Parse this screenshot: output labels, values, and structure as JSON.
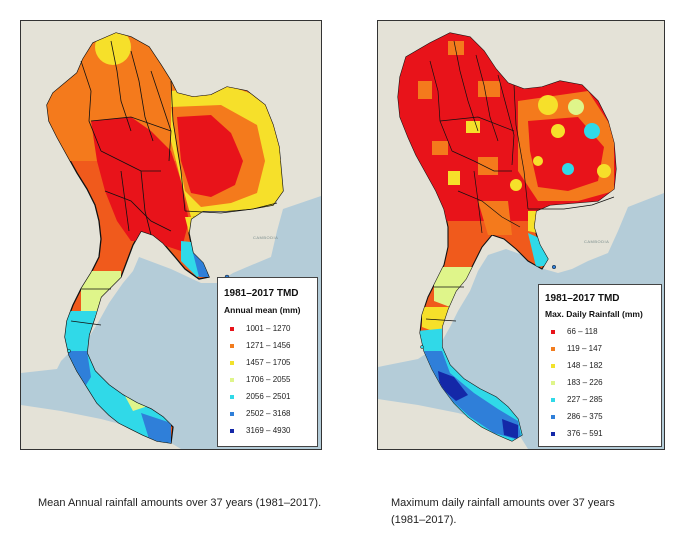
{
  "maps": [
    {
      "id": "annual-mean",
      "legend": {
        "title": "1981–2017 TMD",
        "subtitle": "Annual mean (mm)",
        "classes": [
          {
            "label": "1001 – 1270",
            "color": "#e8131a"
          },
          {
            "label": "1271 – 1456",
            "color": "#f27c1e"
          },
          {
            "label": "1457 – 1705",
            "color": "#f2e22b"
          },
          {
            "label": "1706 – 2055",
            "color": "#dff58a"
          },
          {
            "label": "2056 – 2501",
            "color": "#30d9e8"
          },
          {
            "label": "2502 – 3168",
            "color": "#2f7fd9"
          },
          {
            "label": "3169 – 4930",
            "color": "#1428a8"
          }
        ]
      },
      "caption": "Mean Annual rainfall amounts over 37 years (1981–2017)."
    },
    {
      "id": "max-daily",
      "legend": {
        "title": "1981–2017 TMD",
        "subtitle": "Max. Daily Rainfall (mm)",
        "classes": [
          {
            "label": "66 – 118",
            "color": "#e8131a"
          },
          {
            "label": "119 – 147",
            "color": "#f27c1e"
          },
          {
            "label": "148 – 182",
            "color": "#f2e22b"
          },
          {
            "label": "183 – 226",
            "color": "#dff58a"
          },
          {
            "label": "227 – 285",
            "color": "#30d9e8"
          },
          {
            "label": "286 – 375",
            "color": "#2f7fd9"
          },
          {
            "label": "376 – 591",
            "color": "#1428a8"
          }
        ]
      },
      "caption": "Maximum daily rainfall amounts over 37 years (1981–2017)."
    }
  ],
  "basemap_labels": {
    "cambodia": "CAMBODIA"
  },
  "colors": {
    "sea": "#b4ccd8",
    "land": "#e4e2d7",
    "border": "#111111"
  }
}
